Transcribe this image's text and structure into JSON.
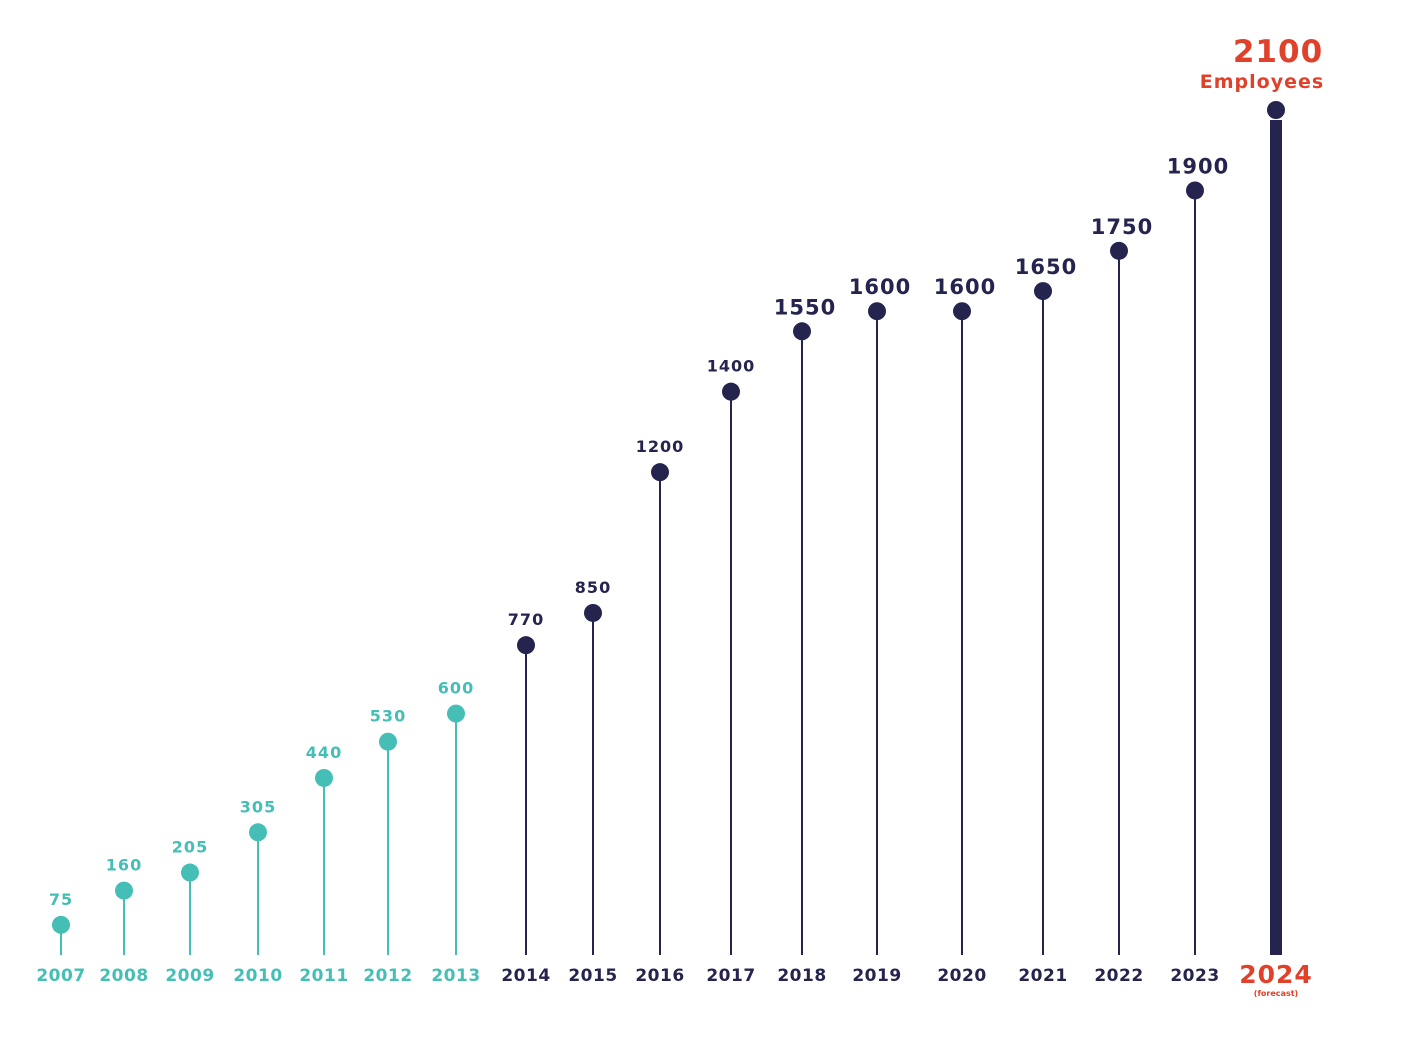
{
  "colors": {
    "early": "#45bfb6",
    "late": "#25244f",
    "highlight": "#e0412a"
  },
  "chart_data": {
    "type": "lollipop",
    "title": "",
    "xlabel": "",
    "ylabel": "",
    "categories": [
      "2007",
      "2008",
      "2009",
      "2010",
      "2011",
      "2012",
      "2013",
      "2014",
      "2015",
      "2016",
      "2017",
      "2018",
      "2019",
      "2020",
      "2021",
      "2022",
      "2023",
      "2024"
    ],
    "values": [
      75,
      160,
      205,
      305,
      440,
      530,
      600,
      770,
      850,
      1200,
      1400,
      1550,
      1600,
      1600,
      1650,
      1750,
      1900,
      2100
    ],
    "value_labels": [
      "75",
      "160",
      "205",
      "305",
      "440",
      "530",
      "600",
      "770",
      "850",
      "1200",
      "1400",
      "1550",
      "1600",
      "1600",
      "1650",
      "1750",
      "1900",
      "2100"
    ],
    "ylim": [
      0,
      2100
    ],
    "grid": false,
    "legend": "none",
    "highlight": {
      "category": "2024",
      "note": "(forecast)",
      "unit": "Employees"
    }
  }
}
